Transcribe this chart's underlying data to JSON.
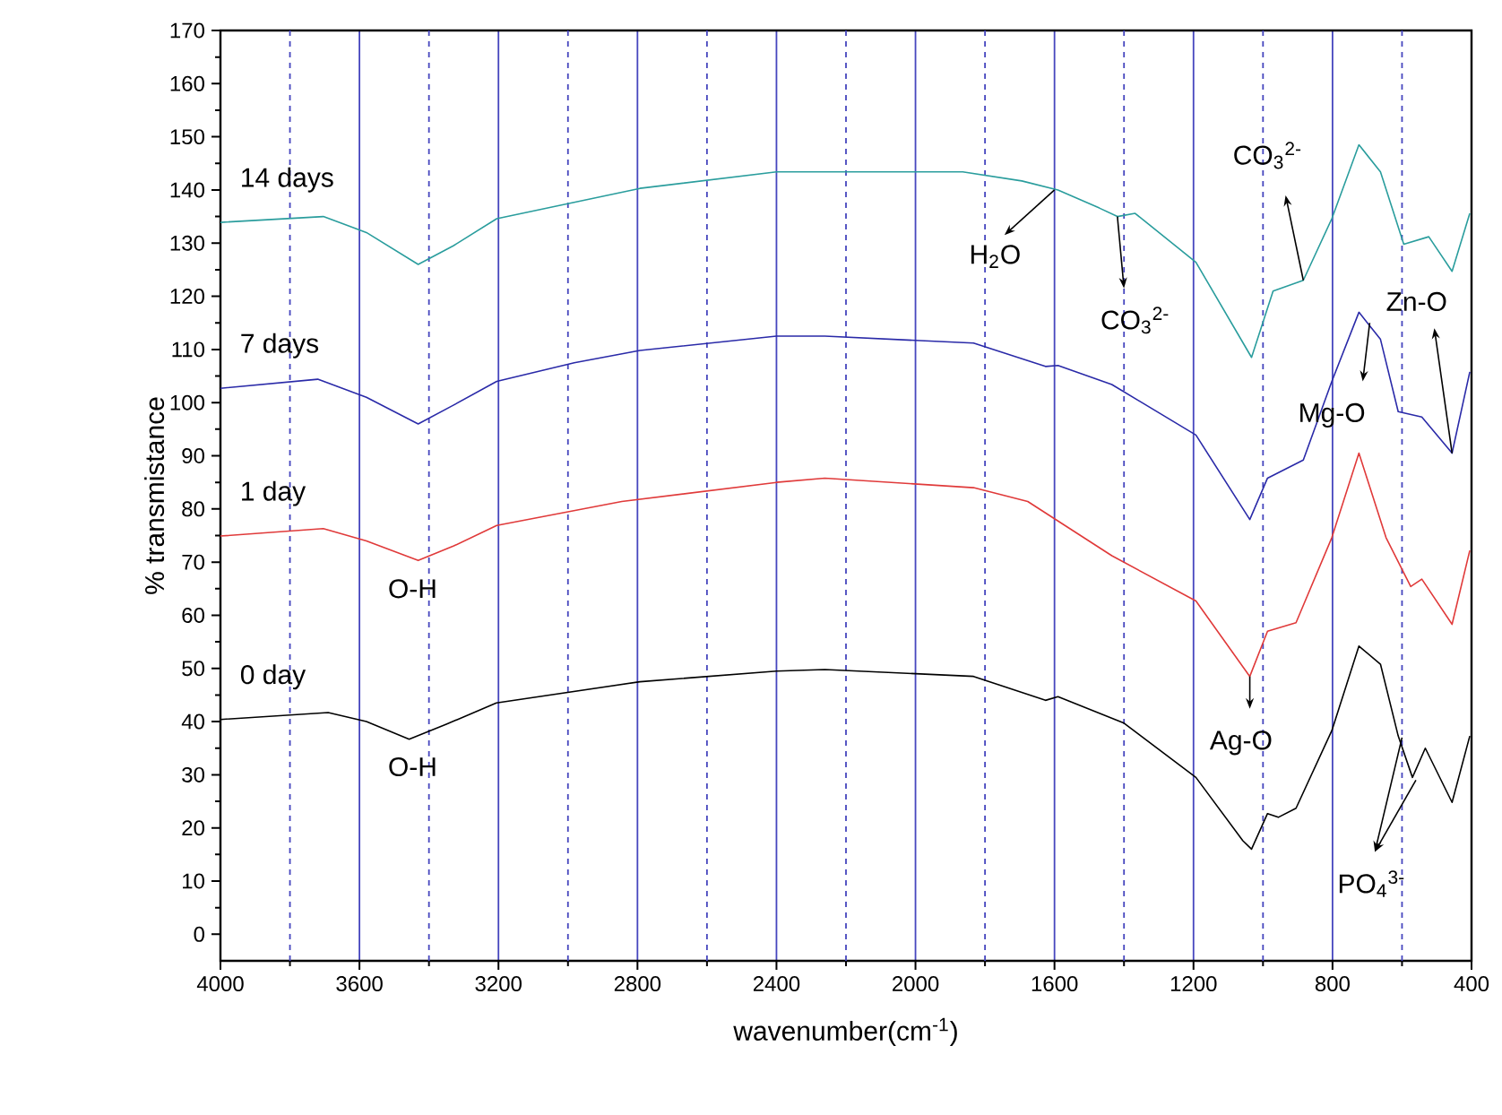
{
  "chart_data": {
    "type": "line",
    "xlabel": "wavenumber(cm$^{-1}$)",
    "ylabel": "% transmistance",
    "xlim": [
      4000,
      400
    ],
    "xticks": [
      4000,
      {
        "value": 3800,
        "label": null
      },
      3600,
      {
        "value": 3400,
        "label": null
      },
      3200,
      {
        "value": 3000,
        "label": null
      },
      2800,
      {
        "value": 2600,
        "label": null
      },
      2400,
      {
        "value": 2200,
        "label": null
      },
      2000,
      {
        "value": 1800,
        "label": null
      },
      1600,
      {
        "value": 1400,
        "label": null
      },
      1200,
      {
        "value": 1000,
        "label": null
      },
      800,
      {
        "value": 600,
        "label": null
      },
      400
    ],
    "ylim": [
      -5,
      170
    ],
    "yticks": [
      0,
      10,
      20,
      30,
      40,
      50,
      60,
      70,
      80,
      90,
      100,
      110,
      120,
      130,
      140,
      150,
      160,
      170
    ],
    "grid": "x",
    "line_style": "solid",
    "marker": "none",
    "series": [
      {
        "name": "0 day",
        "color": "#000000",
        "x": [
          4000,
          3690,
          3580,
          3457,
          3350,
          3206,
          2793,
          2400,
          2261,
          1833,
          1626,
          1590,
          1400,
          1193,
          1058,
          1033,
          987,
          956,
          905,
          802,
          724,
          662,
          611,
          570,
          533,
          456,
          405
        ],
        "values": [
          40.4,
          41.7,
          40,
          36.7,
          39.5,
          43.5,
          47.5,
          49.5,
          49.8,
          48.5,
          44,
          44.7,
          39.7,
          29.5,
          17.6,
          16,
          22.7,
          22,
          23.7,
          38.3,
          54.2,
          50.8,
          37.3,
          29.5,
          35,
          24.8,
          37.3
        ]
      },
      {
        "name": "1 day",
        "color": "#e03a3a",
        "x": [
          4000,
          3704,
          3580,
          3431,
          3330,
          3205,
          2845,
          2400,
          2261,
          1833,
          1677,
          1435,
          1193,
          1038,
          987,
          905,
          802,
          724,
          646,
          575,
          543,
          456,
          405
        ],
        "values": [
          74.9,
          76.3,
          74,
          70.3,
          73,
          76.9,
          81.4,
          85,
          85.8,
          84,
          81.4,
          71.2,
          62.7,
          48.5,
          57,
          58.6,
          74.6,
          90.5,
          74.6,
          65.4,
          66.8,
          58.3,
          72.2
        ]
      },
      {
        "name": "7 days",
        "color": "#2a2aa8",
        "x": [
          4000,
          3720,
          3580,
          3431,
          3330,
          3205,
          2982,
          2793,
          2400,
          2261,
          1833,
          1626,
          1590,
          1435,
          1193,
          1038,
          987,
          884,
          802,
          724,
          662,
          611,
          543,
          456,
          405
        ],
        "values": [
          102.7,
          104.4,
          101,
          96,
          99.5,
          104,
          107.5,
          109.8,
          112.5,
          112.5,
          111.2,
          106.8,
          107,
          103.4,
          93.9,
          78,
          85.8,
          89.2,
          104,
          117,
          111.9,
          98.3,
          97.3,
          90.5,
          105.8
        ]
      },
      {
        "name": "14 days",
        "color": "#2a9d9d",
        "x": [
          4000,
          3704,
          3580,
          3431,
          3330,
          3205,
          2793,
          2400,
          2261,
          1864,
          1694,
          1590,
          1471,
          1419,
          1368,
          1193,
          1033,
          971,
          884,
          802,
          724,
          662,
          595,
          523,
          456,
          405
        ],
        "values": [
          133.9,
          135,
          132,
          126,
          129.5,
          134.6,
          140.3,
          143.4,
          143.4,
          143.4,
          141.7,
          140,
          136.6,
          135,
          135.6,
          126.4,
          108.5,
          121,
          123,
          134.6,
          148.5,
          143.4,
          129.8,
          131.2,
          124.7,
          135.6
        ]
      }
    ],
    "annotations": [
      {
        "text": "O-H",
        "x": 3431,
        "y": 70.3
      },
      {
        "text": "O-H",
        "x": 3457,
        "y": 36.7
      },
      {
        "text": "H$_{2}$O",
        "x": 1600,
        "y": 140
      },
      {
        "text": "CO$_{3}$$^{2-}$",
        "x": 1419,
        "y": 135
      },
      {
        "text": "CO$_{3}$$^{2-}$",
        "x": 884,
        "y": 123
      },
      {
        "text": "Zn-O",
        "x": 456,
        "y": 90.5
      },
      {
        "text": "Mg-O",
        "x": 693,
        "y": 115
      },
      {
        "text": "Ag-O",
        "x": 1038,
        "y": 48.5
      },
      {
        "text": "PO$_{4}$$^{3-}$",
        "x": 600,
        "y": 37
      }
    ]
  }
}
